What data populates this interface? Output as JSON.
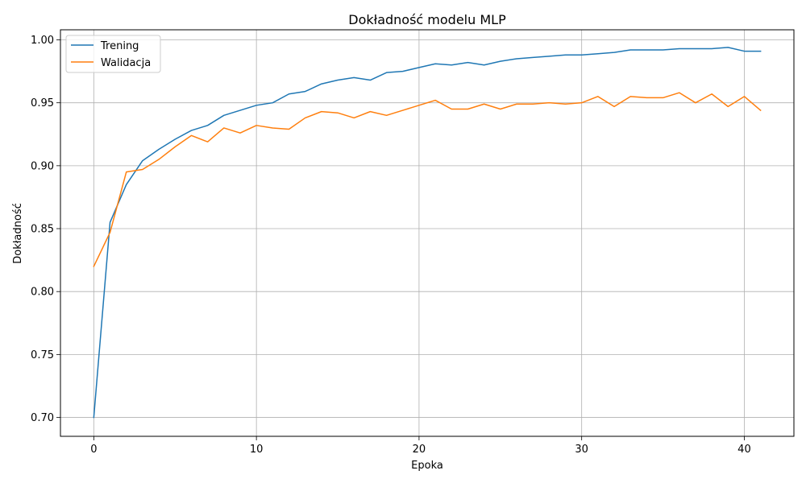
{
  "chart_data": {
    "type": "line",
    "title": "Dokładność modelu MLP",
    "xlabel": "Epoka",
    "ylabel": "Dokładność",
    "xlim": [
      -2.05,
      43.05
    ],
    "ylim": [
      0.685,
      1.008
    ],
    "xticks": [
      0,
      10,
      20,
      30,
      40
    ],
    "yticks": [
      0.7,
      0.75,
      0.8,
      0.85,
      0.9,
      0.95,
      1.0
    ],
    "ytick_labels": [
      "0.70",
      "0.75",
      "0.80",
      "0.85",
      "0.90",
      "0.95",
      "1.00"
    ],
    "grid": true,
    "legend": "top-left",
    "x": [
      0,
      1,
      2,
      3,
      4,
      5,
      6,
      7,
      8,
      9,
      10,
      11,
      12,
      13,
      14,
      15,
      16,
      17,
      18,
      19,
      20,
      21,
      22,
      23,
      24,
      25,
      26,
      27,
      28,
      29,
      30,
      31,
      32,
      33,
      34,
      35,
      36,
      37,
      38,
      39,
      40,
      41
    ],
    "series": [
      {
        "name": "Trening",
        "color": "#1f77b4",
        "values": [
          0.7,
          0.855,
          0.885,
          0.904,
          0.913,
          0.921,
          0.928,
          0.932,
          0.94,
          0.944,
          0.948,
          0.95,
          0.957,
          0.959,
          0.965,
          0.968,
          0.97,
          0.968,
          0.974,
          0.975,
          0.978,
          0.981,
          0.98,
          0.982,
          0.98,
          0.983,
          0.985,
          0.986,
          0.987,
          0.988,
          0.988,
          0.989,
          0.99,
          0.992,
          0.992,
          0.992,
          0.993,
          0.993,
          0.993,
          0.994,
          0.991,
          0.991
        ]
      },
      {
        "name": "Walidacja",
        "color": "#ff7f0e",
        "values": [
          0.82,
          0.847,
          0.895,
          0.897,
          0.905,
          0.915,
          0.924,
          0.919,
          0.93,
          0.926,
          0.932,
          0.93,
          0.929,
          0.938,
          0.943,
          0.942,
          0.938,
          0.943,
          0.94,
          0.944,
          0.948,
          0.952,
          0.945,
          0.945,
          0.949,
          0.945,
          0.949,
          0.949,
          0.95,
          0.949,
          0.95,
          0.955,
          0.947,
          0.955,
          0.954,
          0.954,
          0.958,
          0.95,
          0.957,
          0.947,
          0.955,
          0.944
        ]
      }
    ]
  }
}
